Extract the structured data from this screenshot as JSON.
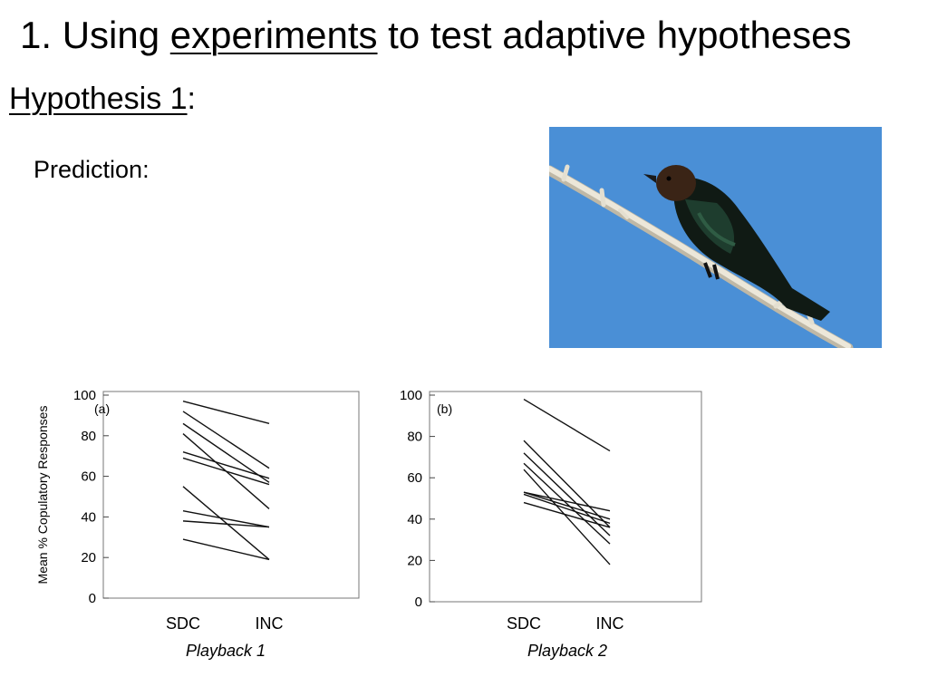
{
  "slide": {
    "title_prefix": "1. Using ",
    "title_link": "experiments",
    "title_suffix": " to test adaptive hypotheses",
    "hypothesis_label": "Hypothesis 1",
    "hypothesis_colon": ":",
    "prediction_label": "Prediction:"
  },
  "photo": {
    "subject": "cowbird-perched-on-branch",
    "sky_color": "#4a8fd6"
  },
  "chart_data": [
    {
      "type": "line",
      "panel_label": "(a)",
      "title": "",
      "ylabel": "Mean % Copulatory Responses",
      "xlabel": "Playback 1",
      "categories": [
        "SDC",
        "INC"
      ],
      "ylim": [
        0,
        100
      ],
      "yticks": [
        0,
        20,
        40,
        60,
        80,
        100
      ],
      "series": [
        {
          "values": [
            97,
            86
          ]
        },
        {
          "values": [
            92,
            64
          ]
        },
        {
          "values": [
            86,
            57
          ]
        },
        {
          "values": [
            81,
            44
          ]
        },
        {
          "values": [
            72,
            59
          ]
        },
        {
          "values": [
            69,
            56
          ]
        },
        {
          "values": [
            55,
            19
          ]
        },
        {
          "values": [
            43,
            35
          ]
        },
        {
          "values": [
            38,
            35
          ]
        },
        {
          "values": [
            29,
            19
          ]
        }
      ]
    },
    {
      "type": "line",
      "panel_label": "(b)",
      "title": "",
      "ylabel": "",
      "xlabel": "Playback 2",
      "categories": [
        "SDC",
        "INC"
      ],
      "ylim": [
        0,
        100
      ],
      "yticks": [
        0,
        20,
        40,
        60,
        80,
        100
      ],
      "series": [
        {
          "values": [
            98,
            73
          ]
        },
        {
          "values": [
            78,
            36
          ]
        },
        {
          "values": [
            72,
            32
          ]
        },
        {
          "values": [
            67,
            28
          ]
        },
        {
          "values": [
            64,
            18
          ]
        },
        {
          "values": [
            53,
            44
          ]
        },
        {
          "values": [
            53,
            40
          ]
        },
        {
          "values": [
            52,
            38
          ]
        },
        {
          "values": [
            48,
            36
          ]
        }
      ]
    }
  ]
}
